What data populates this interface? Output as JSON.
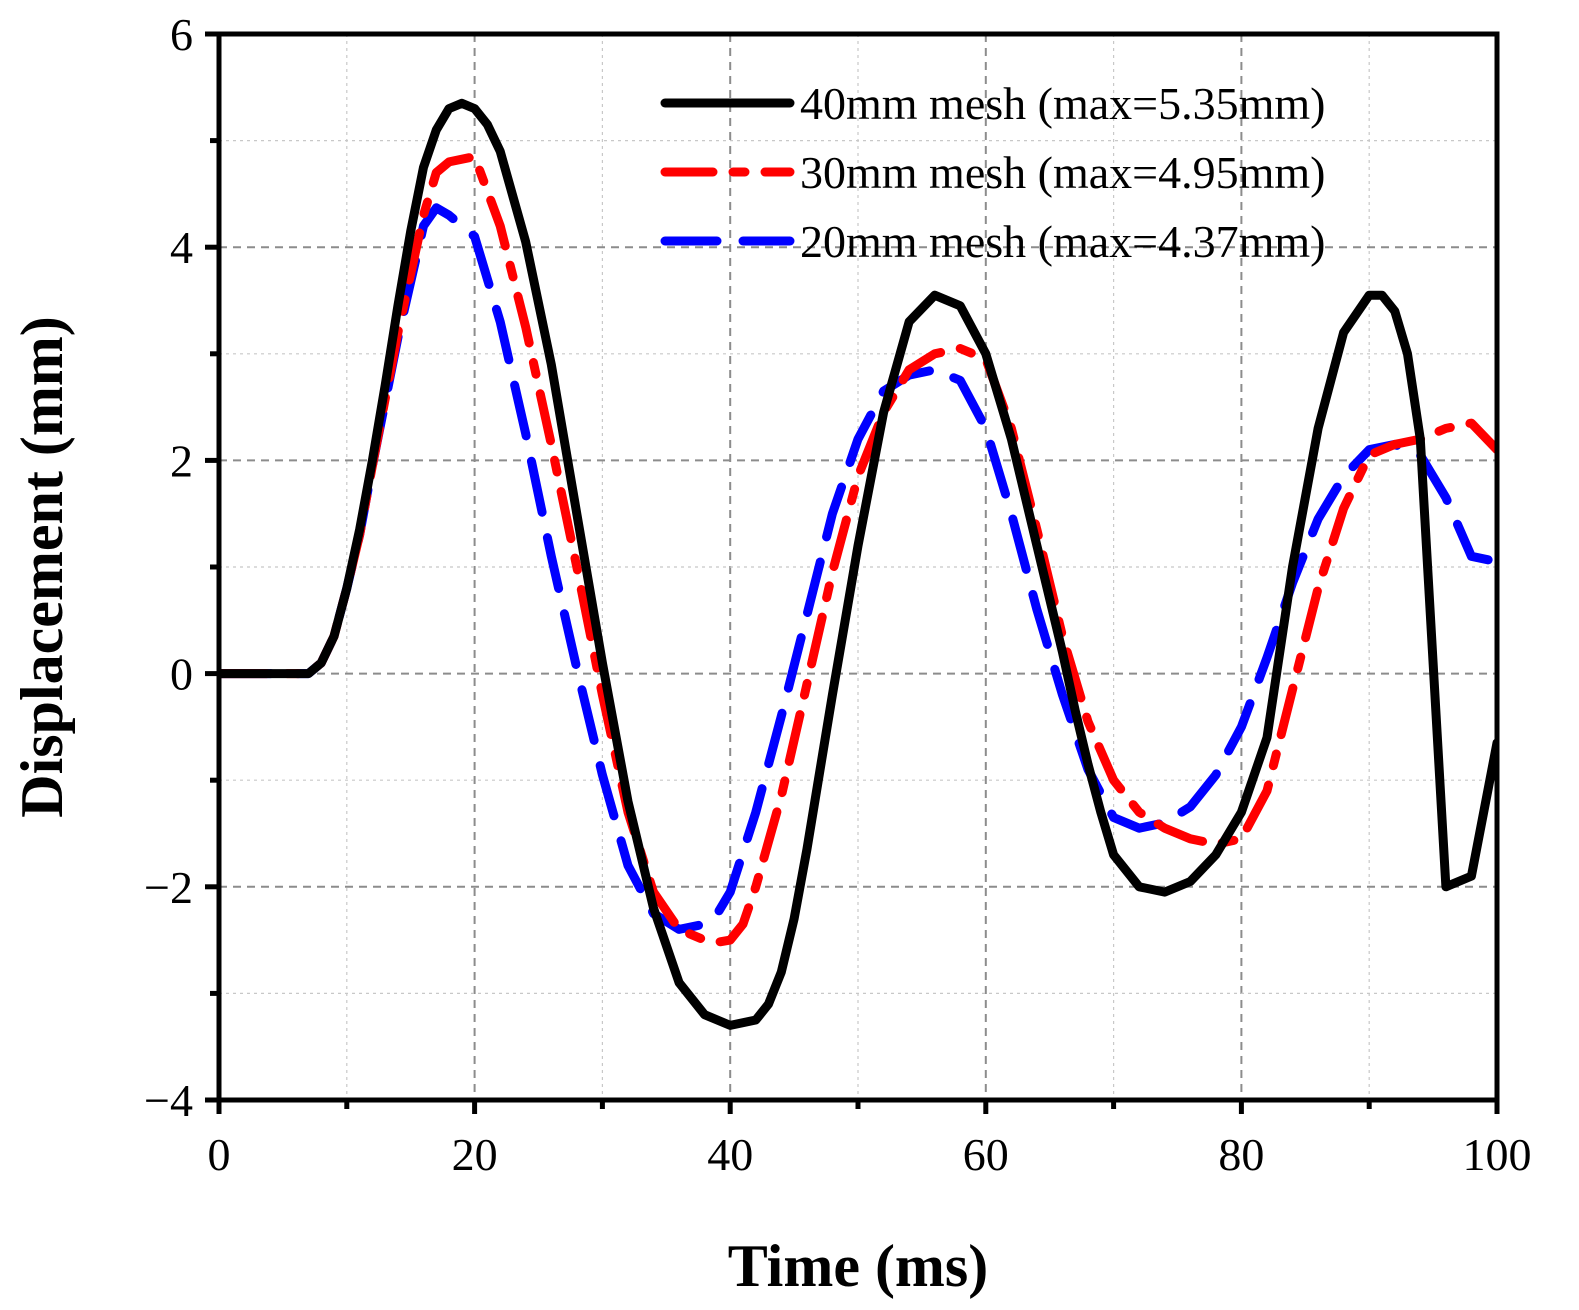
{
  "chart_data": {
    "type": "line",
    "title": "",
    "xlabel": "Time (ms)",
    "ylabel": "Displacement (mm)",
    "xlim": [
      0,
      100
    ],
    "ylim": [
      -4,
      6
    ],
    "xticks": [
      0,
      20,
      40,
      60,
      80,
      100
    ],
    "yticks": [
      -4,
      -2,
      0,
      2,
      4,
      6
    ],
    "xtick_labels": [
      "0",
      "20",
      "40",
      "60",
      "80",
      "100"
    ],
    "ytick_labels": [
      "−4",
      "−2",
      "0",
      "2",
      "4",
      "6"
    ],
    "grid": true,
    "legend_position": "top-right",
    "series": [
      {
        "name": "40mm mesh (max=5.35mm)",
        "color": "#000000",
        "style": "solid",
        "x": [
          0,
          7,
          8,
          9,
          10,
          11,
          12,
          13,
          14,
          15,
          16,
          17,
          18,
          19,
          20,
          21,
          22,
          24,
          26,
          28,
          30,
          32,
          34,
          36,
          38,
          40,
          42,
          43,
          44,
          45,
          46,
          48,
          50,
          52,
          54,
          56,
          58,
          60,
          62,
          64,
          66,
          67,
          68,
          69,
          70,
          72,
          74,
          76,
          78,
          80,
          82,
          84,
          86,
          88,
          90,
          91,
          92,
          93,
          94,
          96,
          98,
          100
        ],
        "y": [
          0,
          0,
          0.1,
          0.35,
          0.8,
          1.35,
          2.0,
          2.7,
          3.45,
          4.15,
          4.75,
          5.1,
          5.3,
          5.35,
          5.3,
          5.15,
          4.9,
          4.05,
          2.9,
          1.5,
          0.1,
          -1.2,
          -2.2,
          -2.9,
          -3.2,
          -3.3,
          -3.25,
          -3.1,
          -2.8,
          -2.3,
          -1.65,
          -0.2,
          1.2,
          2.45,
          3.3,
          3.55,
          3.45,
          3.0,
          2.2,
          1.2,
          0.2,
          -0.35,
          -0.85,
          -1.3,
          -1.7,
          -2.0,
          -2.05,
          -1.95,
          -1.7,
          -1.3,
          -0.6,
          1.0,
          2.3,
          3.2,
          3.55,
          3.55,
          3.4,
          3.0,
          2.2,
          -2.0,
          -1.9,
          -0.65
        ]
      },
      {
        "name": "30mm mesh (max=4.95mm)",
        "color": "#ff0000",
        "style": "dash-dot",
        "x": [
          0,
          7,
          8,
          9,
          10,
          11,
          12,
          14,
          16,
          17,
          18,
          20,
          22,
          24,
          26,
          28,
          30,
          32,
          34,
          36,
          38,
          39,
          40,
          41,
          42,
          44,
          46,
          48,
          50,
          52,
          54,
          56,
          58,
          60,
          62,
          64,
          66,
          68,
          70,
          72,
          74,
          76,
          78,
          80,
          82,
          84,
          86,
          88,
          90,
          92,
          94,
          96,
          98,
          100
        ],
        "y": [
          0,
          0,
          0.1,
          0.35,
          0.8,
          1.3,
          1.95,
          3.2,
          4.3,
          4.7,
          4.8,
          4.85,
          4.2,
          3.25,
          2.15,
          1.0,
          -0.2,
          -1.3,
          -2.05,
          -2.4,
          -2.5,
          -2.52,
          -2.5,
          -2.35,
          -2.0,
          -1.15,
          -0.1,
          0.95,
          1.85,
          2.45,
          2.85,
          3.0,
          3.05,
          2.95,
          2.3,
          1.35,
          0.35,
          -0.45,
          -1.0,
          -1.3,
          -1.45,
          -1.55,
          -1.6,
          -1.55,
          -1.1,
          -0.15,
          0.8,
          1.55,
          2.05,
          2.15,
          2.2,
          2.3,
          2.35,
          2.1
        ]
      },
      {
        "name": "20mm mesh (max=4.37mm)",
        "color": "#0000ff",
        "style": "dash",
        "x": [
          0,
          7,
          8,
          9,
          10,
          11,
          12,
          14,
          16,
          17,
          18,
          20,
          22,
          24,
          26,
          28,
          30,
          32,
          34,
          36,
          38,
          39,
          40,
          42,
          44,
          46,
          48,
          50,
          52,
          54,
          56,
          58,
          60,
          62,
          64,
          66,
          68,
          70,
          72,
          74,
          76,
          78,
          80,
          82,
          84,
          86,
          88,
          90,
          92,
          94,
          96,
          98,
          100
        ],
        "y": [
          0,
          0,
          0.1,
          0.35,
          0.8,
          1.3,
          1.95,
          3.15,
          4.2,
          4.37,
          4.3,
          4.1,
          3.3,
          2.25,
          1.1,
          0.05,
          -0.95,
          -1.8,
          -2.25,
          -2.4,
          -2.35,
          -2.25,
          -2.05,
          -1.3,
          -0.4,
          0.55,
          1.5,
          2.2,
          2.65,
          2.8,
          2.85,
          2.75,
          2.3,
          1.5,
          0.6,
          -0.2,
          -0.9,
          -1.35,
          -1.45,
          -1.4,
          -1.25,
          -0.95,
          -0.5,
          0.15,
          0.85,
          1.45,
          1.85,
          2.1,
          2.15,
          2.05,
          1.65,
          1.1,
          1.05
        ]
      }
    ]
  }
}
